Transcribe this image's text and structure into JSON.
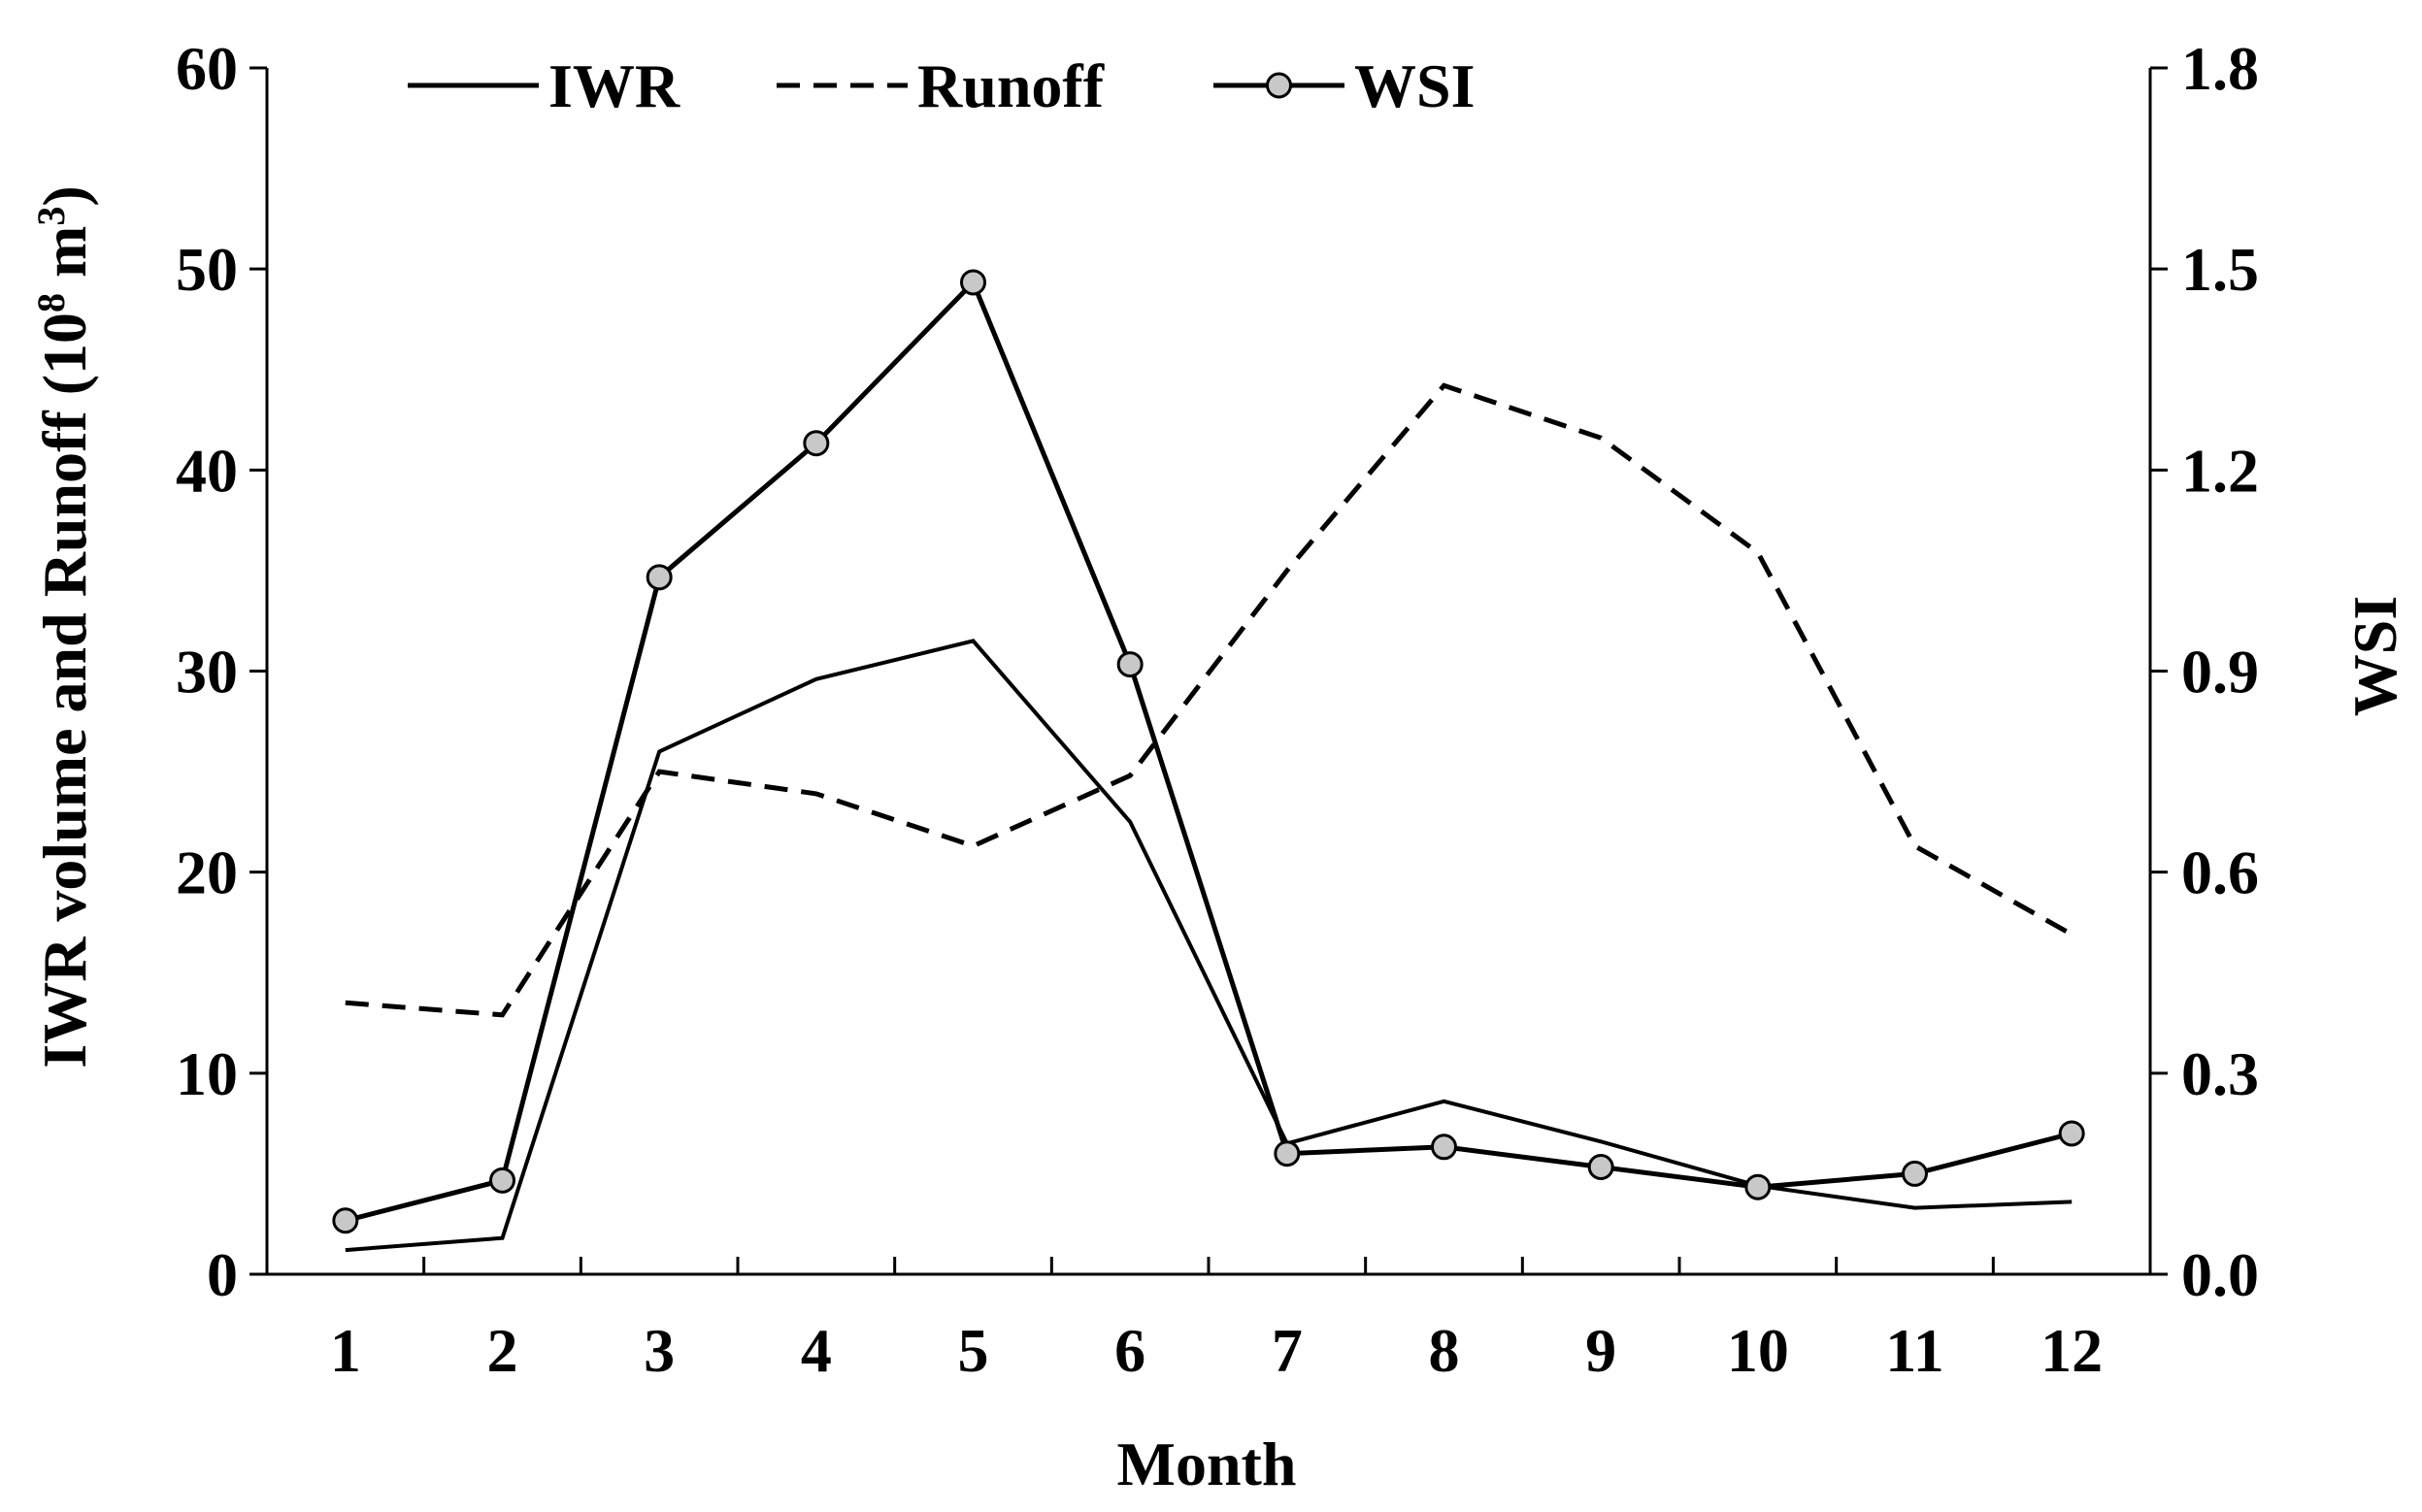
{
  "chart_data": {
    "type": "line",
    "title": "",
    "xlabel": "Month",
    "ylabel": "IWR volume and Runoff (10",
    "ylabel_sup": "8",
    "ylabel_unit": " m",
    "ylabel_sup2": "3",
    "ylabel_close": ")",
    "y2label": "WSI",
    "categories": [
      "1",
      "2",
      "3",
      "4",
      "5",
      "6",
      "7",
      "8",
      "9",
      "10",
      "11",
      "12"
    ],
    "x": [
      1,
      2,
      3,
      4,
      5,
      6,
      7,
      8,
      9,
      10,
      11,
      12
    ],
    "ylim": [
      0,
      60
    ],
    "y2lim": [
      0,
      1.8
    ],
    "yticks": [
      "0",
      "10",
      "20",
      "30",
      "40",
      "50",
      "60"
    ],
    "y2ticks": [
      "0.0",
      "0.3",
      "0.6",
      "0.9",
      "1.2",
      "1.5",
      "1.8"
    ],
    "grid": false,
    "legend_position": "top",
    "series": [
      {
        "name": "IWR",
        "axis": "left",
        "style": "solid",
        "marker": "none",
        "values": [
          1.2,
          1.8,
          26.0,
          29.6,
          31.5,
          22.5,
          6.5,
          8.6,
          6.6,
          4.4,
          3.3,
          3.6
        ]
      },
      {
        "name": "Runoff",
        "axis": "left",
        "style": "dashed",
        "marker": "none",
        "values": [
          13.5,
          12.9,
          25.0,
          23.9,
          21.3,
          24.8,
          35.0,
          44.2,
          41.6,
          35.9,
          21.3,
          16.9
        ]
      },
      {
        "name": "WSI",
        "axis": "right",
        "style": "solid",
        "marker": "circle",
        "values": [
          0.08,
          0.14,
          1.04,
          1.24,
          1.48,
          0.91,
          0.18,
          0.19,
          0.16,
          0.13,
          0.15,
          0.21
        ]
      }
    ],
    "colors": {
      "line": "#000000",
      "marker_fill": "#c8c8c8",
      "background": "#ffffff"
    }
  }
}
